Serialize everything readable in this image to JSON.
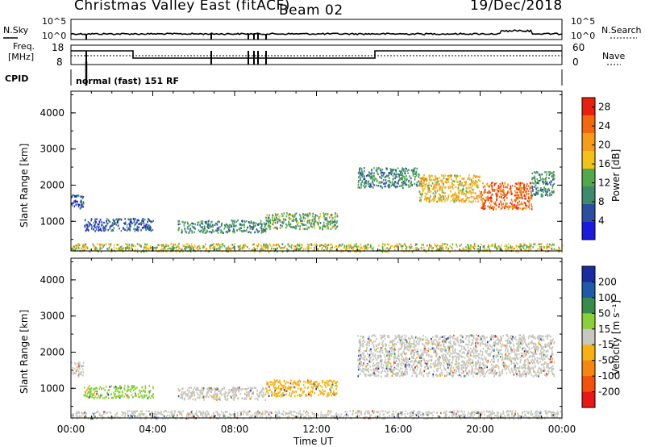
{
  "header": {
    "title": "Christmas Valley East (fitACF)",
    "beam": "Beam 02",
    "date": "19/Dec/2018"
  },
  "strips": {
    "nsky_label": "N.Sky",
    "nsearch_label": "N.Search",
    "freq_label_1": "Freq.",
    "freq_label_2": "[MHz]",
    "nave_label": "Nave",
    "cpid_label": "CPID",
    "cpid_text": "normal (fast) 151 RF",
    "nsky_ticks": [
      "10^5",
      "10^0"
    ],
    "nsearch_ticks": [
      "10^5",
      "10^0"
    ],
    "freq_ticks": [
      "18",
      "8"
    ],
    "nave_ticks": [
      "60",
      "0"
    ]
  },
  "colors": {
    "power_scale": [
      "#1a1adc",
      "#2b4f9e",
      "#3f8a6a",
      "#52a84a",
      "#f2c21a",
      "#f59d1a",
      "#f2680f",
      "#e8200f"
    ],
    "velocity_scale": [
      "#e81818",
      "#f2520c",
      "#f5860f",
      "#f5b214",
      "#c8c8c0",
      "#8bd03a",
      "#3a8a4a",
      "#1e5aa8",
      "#1a2aa0"
    ],
    "ground_scatter": "#c6c6be"
  },
  "chart_data": [
    {
      "type": "heatmap",
      "name": "power",
      "xlabel": "",
      "ylabel": "Slant Range [km]",
      "x_ticks": [
        "00:00",
        "04:00",
        "08:00",
        "12:00",
        "16:00",
        "20:00",
        "00:00"
      ],
      "xlim_hours": [
        0,
        24
      ],
      "y_ticks": [
        1000,
        2000,
        3000,
        4000
      ],
      "ylim_km": [
        180,
        4600
      ],
      "colorbar_label": "Power [dB]",
      "colorbar_ticks": [
        4,
        8,
        12,
        16,
        20,
        24,
        28
      ],
      "colorbar_range": [
        0,
        30
      ],
      "echo_regions": [
        {
          "t_start": 0.0,
          "t_end": 0.6,
          "range_low": 1350,
          "range_high": 1750,
          "power_db": 6
        },
        {
          "t_start": 0.6,
          "t_end": 4.0,
          "range_low": 750,
          "range_high": 1100,
          "power_db": 6
        },
        {
          "t_start": 5.2,
          "t_end": 9.5,
          "range_low": 700,
          "range_high": 1050,
          "power_db": 10
        },
        {
          "t_start": 9.5,
          "t_end": 13.0,
          "range_low": 800,
          "range_high": 1250,
          "power_db": 12
        },
        {
          "t_start": 14.0,
          "t_end": 17.0,
          "range_low": 1950,
          "range_high": 2500,
          "power_db": 10
        },
        {
          "t_start": 17.0,
          "t_end": 20.0,
          "range_low": 1550,
          "range_high": 2300,
          "power_db": 18
        },
        {
          "t_start": 20.0,
          "t_end": 22.5,
          "range_low": 1350,
          "range_high": 2100,
          "power_db": 24
        },
        {
          "t_start": 22.5,
          "t_end": 23.6,
          "range_low": 1700,
          "range_high": 2400,
          "power_db": 10
        },
        {
          "t_start": 0.0,
          "t_end": 24.0,
          "range_low": 180,
          "range_high": 400,
          "power_db": 16
        }
      ]
    },
    {
      "type": "heatmap",
      "name": "velocity",
      "xlabel": "Time UT",
      "ylabel": "Slant Range [km]",
      "x_ticks": [
        "00:00",
        "04:00",
        "08:00",
        "12:00",
        "16:00",
        "20:00",
        "00:00"
      ],
      "xlim_hours": [
        0,
        24
      ],
      "y_ticks": [
        1000,
        2000,
        3000,
        4000
      ],
      "ylim_km": [
        180,
        4600
      ],
      "colorbar_label": "Velocity [m s⁻¹]",
      "colorbar_ticks": [
        "200",
        "100",
        "50",
        "15",
        "-15",
        "-50",
        "-100",
        "-200"
      ],
      "echo_regions": [
        {
          "t_start": 0.0,
          "t_end": 0.6,
          "range_low": 1350,
          "range_high": 1750,
          "class": "ground"
        },
        {
          "t_start": 0.6,
          "t_end": 4.0,
          "range_low": 750,
          "range_high": 1100,
          "class": "v30"
        },
        {
          "t_start": 5.2,
          "t_end": 9.5,
          "range_low": 700,
          "range_high": 1050,
          "class": "ground"
        },
        {
          "t_start": 9.5,
          "t_end": 13.0,
          "range_low": 800,
          "range_high": 1250,
          "class": "v-40"
        },
        {
          "t_start": 14.0,
          "t_end": 23.6,
          "range_low": 1350,
          "range_high": 2500,
          "class": "ground"
        },
        {
          "t_start": 0.0,
          "t_end": 24.0,
          "range_low": 180,
          "range_high": 400,
          "class": "ground"
        }
      ]
    }
  ]
}
